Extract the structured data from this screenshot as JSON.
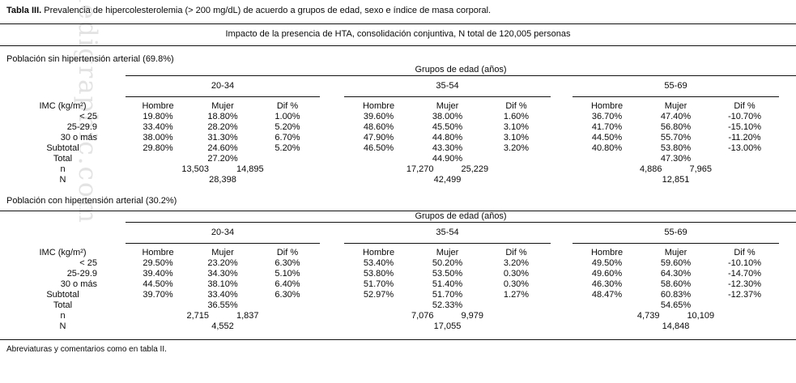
{
  "watermark": "medigraphic.com",
  "title": {
    "label": "Tabla III.",
    "text": " Prevalencia de hipercolesterolemia (> 200 mg/dL) de acuerdo a grupos de edad, sexo e índice de masa corporal."
  },
  "subtitle": "Impacto de la presencia de HTA, consolidación conjuntiva, N total de 120,005 personas",
  "footer": "Abreviaturas y comentarios como en tabla II.",
  "sections": [
    {
      "title": "Población sin hipertensión arterial (69.8%)",
      "age_header": "Grupos de edad (años)",
      "age_groups": [
        "20-34",
        "35-54",
        "55-69"
      ],
      "col_headers": [
        "Hombre",
        "Mujer",
        "Dif %"
      ],
      "row_header": "IMC (kg/m²)",
      "rows": [
        {
          "label": "< 25",
          "cls": "indent",
          "values": [
            "19.80%",
            "18.80%",
            "1.00%",
            "39.60%",
            "38.00%",
            "1.60%",
            "36.70%",
            "47.40%",
            "-10.70%"
          ]
        },
        {
          "label": "25-29.9",
          "cls": "indent",
          "values": [
            "33.40%",
            "28.20%",
            "5.20%",
            "48.60%",
            "45.50%",
            "3.10%",
            "41.70%",
            "56.80%",
            "-15.10%"
          ]
        },
        {
          "label": "30 o más",
          "cls": "indent",
          "values": [
            "38.00%",
            "31.30%",
            "6.70%",
            "47.90%",
            "44.80%",
            "3.10%",
            "44.50%",
            "55.70%",
            "-11.20%"
          ]
        },
        {
          "label": "Subtotal",
          "cls": "",
          "values": [
            "29.80%",
            "24.60%",
            "5.20%",
            "46.50%",
            "43.30%",
            "3.20%",
            "40.80%",
            "53.80%",
            "-13.00%"
          ]
        }
      ],
      "total": {
        "label": "Total",
        "values": [
          "27.20%",
          "44.90%",
          "47.30%"
        ]
      },
      "n_row": {
        "label": "n",
        "values": [
          [
            "13,503",
            "14,895"
          ],
          [
            "17,270",
            "25,229"
          ],
          [
            "4,886",
            "7,965"
          ]
        ]
      },
      "nn_row": {
        "label": "N",
        "values": [
          "28,398",
          "42,499",
          "12,851"
        ]
      }
    },
    {
      "title": "Población con hipertensión arterial (30.2%)",
      "age_header": "Grupos de edad (años)",
      "age_groups": [
        "20-34",
        "35-54",
        "55-69"
      ],
      "col_headers": [
        "Hombre",
        "Mujer",
        "Dif %"
      ],
      "row_header": "IMC (kg/m²)",
      "rows": [
        {
          "label": "< 25",
          "cls": "indent",
          "values": [
            "29.50%",
            "23.20%",
            "6.30%",
            "53.40%",
            "50.20%",
            "3.20%",
            "49.50%",
            "59.60%",
            "-10.10%"
          ]
        },
        {
          "label": "25-29.9",
          "cls": "indent",
          "values": [
            "39.40%",
            "34.30%",
            "5.10%",
            "53.80%",
            "53.50%",
            "0.30%",
            "49.60%",
            "64.30%",
            "-14.70%"
          ]
        },
        {
          "label": "30 o más",
          "cls": "indent",
          "values": [
            "44.50%",
            "38.10%",
            "6.40%",
            "51.70%",
            "51.40%",
            "0.30%",
            "46.30%",
            "58.60%",
            "-12.30%"
          ]
        },
        {
          "label": "Subtotal",
          "cls": "",
          "values": [
            "39.70%",
            "33.40%",
            "6.30%",
            "52.97%",
            "51.70%",
            "1.27%",
            "48.47%",
            "60.83%",
            "-12.37%"
          ]
        }
      ],
      "total": {
        "label": "Total",
        "values": [
          "36.55%",
          "52.33%",
          "54.65%"
        ]
      },
      "n_row": {
        "label": "n",
        "values": [
          [
            "2,715",
            "1,837"
          ],
          [
            "7,076",
            "9,979"
          ],
          [
            "4,739",
            "10,109"
          ]
        ]
      },
      "nn_row": {
        "label": "N",
        "values": [
          "4,552",
          "17,055",
          "14,848"
        ]
      }
    }
  ]
}
